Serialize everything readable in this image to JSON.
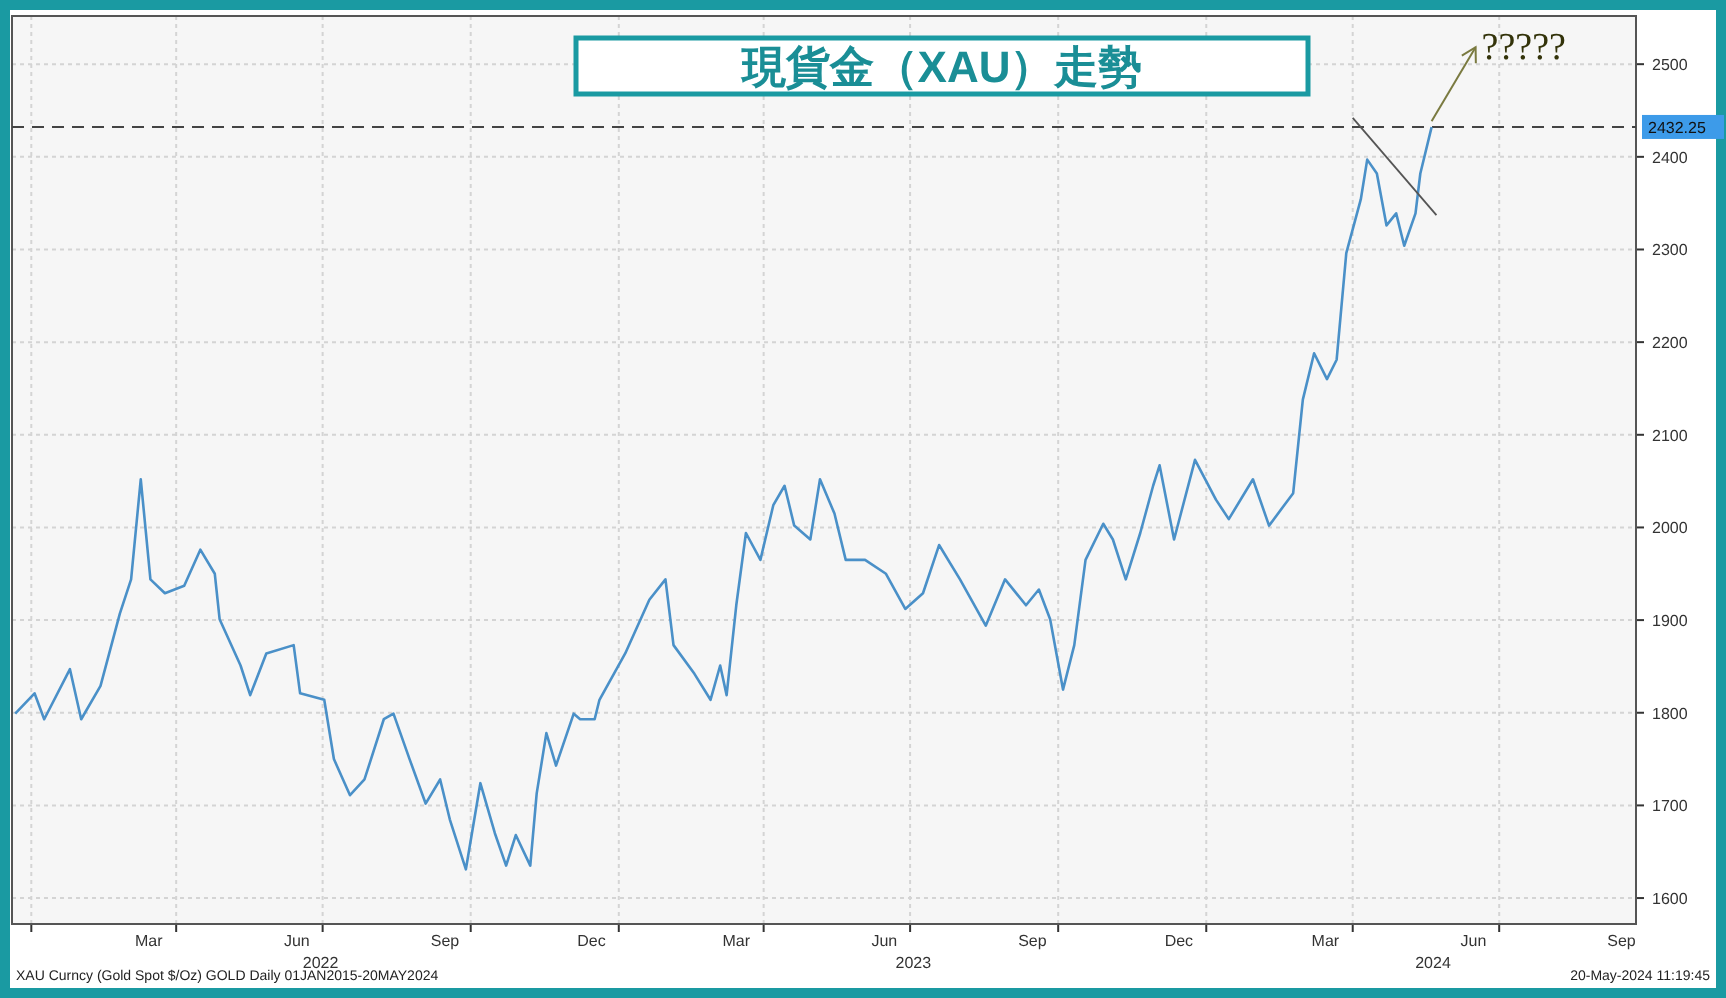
{
  "chart_data": {
    "type": "line",
    "title": "現貨金（XAU）走勢",
    "xlim": [
      "2021-12-20",
      "2024-09-24"
    ],
    "ylim": [
      1572,
      2552
    ],
    "yticks": [
      1600,
      1700,
      1800,
      1900,
      2000,
      2100,
      2200,
      2300,
      2400,
      2500
    ],
    "xticks": [
      {
        "value": "2022-01-01",
        "label": null
      },
      {
        "value": "2022-03-15",
        "label": "Mar"
      },
      {
        "value": "2022-04-01",
        "label": null
      },
      {
        "value": "2022-06-15",
        "label": "Jun"
      },
      {
        "value": "2022-07-01",
        "label": null
      },
      {
        "value": "2022-09-15",
        "label": "Sep"
      },
      {
        "value": "2022-10-01",
        "label": null
      },
      {
        "value": "2022-12-15",
        "label": "Dec"
      },
      {
        "value": "2023-01-01",
        "label": null
      },
      {
        "value": "2023-03-15",
        "label": "Mar"
      },
      {
        "value": "2023-04-01",
        "label": null
      },
      {
        "value": "2023-06-15",
        "label": "Jun"
      },
      {
        "value": "2023-07-01",
        "label": null
      },
      {
        "value": "2023-09-15",
        "label": "Sep"
      },
      {
        "value": "2023-10-01",
        "label": null
      },
      {
        "value": "2023-12-15",
        "label": "Dec"
      },
      {
        "value": "2024-01-01",
        "label": null
      },
      {
        "value": "2024-03-15",
        "label": "Mar"
      },
      {
        "value": "2024-04-01",
        "label": null
      },
      {
        "value": "2024-06-15",
        "label": "Jun"
      },
      {
        "value": "2024-07-01",
        "label": null
      },
      {
        "value": "2024-09-15",
        "label": "Sep"
      }
    ],
    "grid": true,
    "series": [
      {
        "color": "#4a90c8",
        "x": [
          "2021-12-22",
          "2022-01-03",
          "2022-01-09",
          "2022-01-25",
          "2022-02-01",
          "2022-02-13",
          "2022-02-25",
          "2022-03-04",
          "2022-03-10",
          "2022-03-16",
          "2022-03-25",
          "2022-04-06",
          "2022-04-16",
          "2022-04-25",
          "2022-04-28",
          "2022-05-11",
          "2022-05-17",
          "2022-05-27",
          "2022-06-13",
          "2022-06-17",
          "2022-07-02",
          "2022-07-08",
          "2022-07-18",
          "2022-07-27",
          "2022-08-08",
          "2022-08-14",
          "2022-08-24",
          "2022-09-03",
          "2022-09-12",
          "2022-09-18",
          "2022-09-28",
          "2022-10-07",
          "2022-10-16",
          "2022-10-23",
          "2022-10-29",
          "2022-11-07",
          "2022-11-11",
          "2022-11-17",
          "2022-11-23",
          "2022-12-04",
          "2022-12-08",
          "2022-12-17",
          "2022-12-20",
          "2023-01-05",
          "2023-01-20",
          "2023-01-30",
          "2023-02-04",
          "2023-02-17",
          "2023-02-27",
          "2023-03-05",
          "2023-03-09",
          "2023-03-15",
          "2023-03-21",
          "2023-03-30",
          "2023-04-07",
          "2023-04-14",
          "2023-04-20",
          "2023-04-30",
          "2023-05-06",
          "2023-05-15",
          "2023-05-22",
          "2023-06-03",
          "2023-06-16",
          "2023-06-28",
          "2023-07-09",
          "2023-07-19",
          "2023-08-01",
          "2023-08-17",
          "2023-08-29",
          "2023-09-11",
          "2023-09-19",
          "2023-09-26",
          "2023-10-04",
          "2023-10-11",
          "2023-10-18",
          "2023-10-29",
          "2023-11-04",
          "2023-11-12",
          "2023-11-21",
          "2023-11-29",
          "2023-12-03",
          "2023-12-12",
          "2023-12-25",
          "2024-01-07",
          "2024-01-15",
          "2024-01-30",
          "2024-02-09",
          "2024-02-24",
          "2024-03-01",
          "2024-03-08",
          "2024-03-16",
          "2024-03-22",
          "2024-03-28",
          "2024-04-06",
          "2024-04-10",
          "2024-04-16",
          "2024-04-22",
          "2024-04-28",
          "2024-05-03",
          "2024-05-10",
          "2024-05-13",
          "2024-05-20"
        ],
        "values": [
          1799,
          1821,
          1793,
          1847,
          1793,
          1829,
          1907,
          1944,
          2052,
          1944,
          1929,
          1937,
          1976,
          1950,
          1901,
          1851,
          1819,
          1864,
          1873,
          1821,
          1814,
          1750,
          1711,
          1728,
          1793,
          1799,
          1750,
          1702,
          1728,
          1685,
          1631,
          1724,
          1670,
          1635,
          1668,
          1635,
          1713,
          1778,
          1743,
          1799,
          1793,
          1793,
          1814,
          1864,
          1922,
          1944,
          1873,
          1842,
          1814,
          1851,
          1819,
          1916,
          1994,
          1965,
          2024,
          2045,
          2002,
          1987,
          2052,
          2015,
          1965,
          1965,
          1950,
          1912,
          1929,
          1981,
          1944,
          1894,
          1944,
          1916,
          1933,
          1901,
          1825,
          1873,
          1965,
          2004,
          1987,
          1944,
          1994,
          2045,
          2067,
          1987,
          2073,
          2030,
          2009,
          2052,
          2002,
          2037,
          2138,
          2188,
          2160,
          2181,
          2296,
          2354,
          2397,
          2382,
          2326,
          2339,
          2304,
          2339,
          2382,
          2432
        ]
      },
      {
        "type": "line",
        "color": "#555555",
        "x": [
          "2024-04-01",
          "2024-05-23"
        ],
        "values": [
          2442,
          2337
        ]
      }
    ],
    "ref_lines": [
      {
        "axis": "y",
        "value": 2432.25,
        "label": "2432.25",
        "color": "#444444",
        "line_style": "dashed"
      }
    ],
    "annotations": [
      "?????",
      "2022",
      "2023",
      "2024",
      "XAU Curncy (Gold Spot  $/Oz) GOLD  Daily 01JAN2015-20MAY2024",
      "20-May-2024 11:19:45"
    ]
  }
}
